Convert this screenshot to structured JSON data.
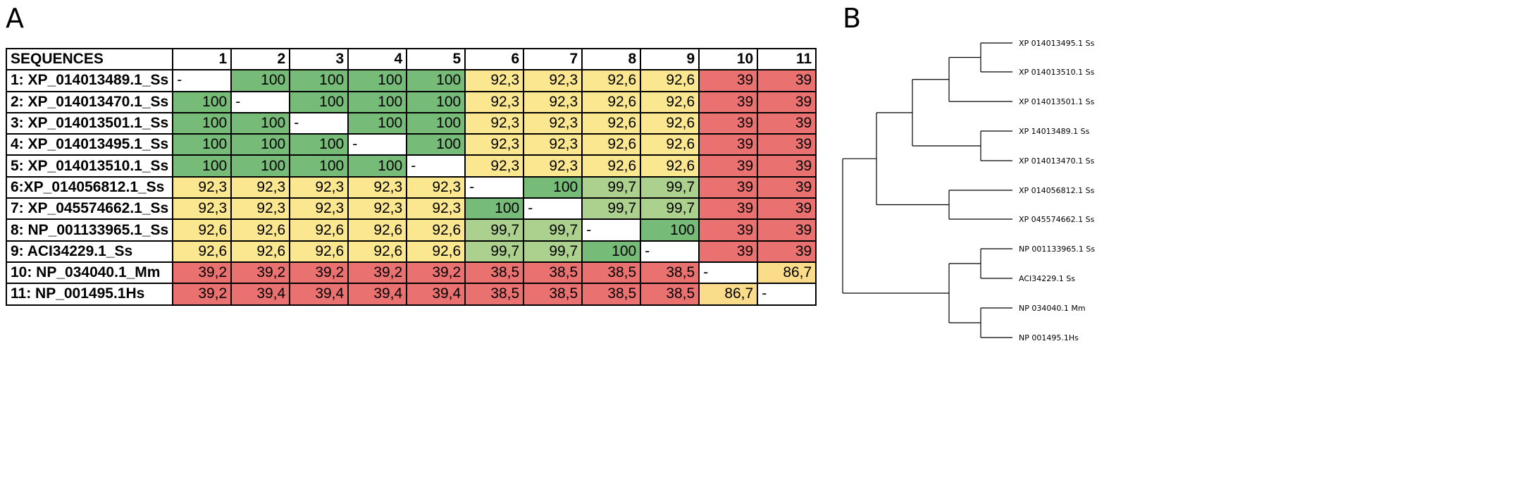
{
  "panels": {
    "a_label": "A",
    "b_label": "B"
  },
  "matrix": {
    "corner": "SEQUENCES",
    "columns": [
      "1",
      "2",
      "3",
      "4",
      "5",
      "6",
      "7",
      "8",
      "9",
      "10",
      "11"
    ],
    "rows": [
      {
        "name": "1: XP_014013489.1_Ss",
        "cells": [
          "-",
          "100",
          "100",
          "100",
          "100",
          "92,3",
          "92,3",
          "92,6",
          "92,6",
          "39",
          "39"
        ],
        "colors": [
          "w",
          "g",
          "g",
          "g",
          "g",
          "y",
          "y",
          "y",
          "y",
          "r",
          "r"
        ]
      },
      {
        "name": "2: XP_014013470.1_Ss",
        "cells": [
          "100",
          "-",
          "100",
          "100",
          "100",
          "92,3",
          "92,3",
          "92,6",
          "92,6",
          "39",
          "39"
        ],
        "colors": [
          "g",
          "w",
          "g",
          "g",
          "g",
          "y",
          "y",
          "y",
          "y",
          "r",
          "r"
        ]
      },
      {
        "name": "3: XP_014013501.1_Ss",
        "cells": [
          "100",
          "100",
          "-",
          "100",
          "100",
          "92,3",
          "92,3",
          "92,6",
          "92,6",
          "39",
          "39"
        ],
        "colors": [
          "g",
          "g",
          "w",
          "g",
          "g",
          "y",
          "y",
          "y",
          "y",
          "r",
          "r"
        ]
      },
      {
        "name": "4: XP_014013495.1_Ss",
        "cells": [
          "100",
          "100",
          "100",
          "-",
          "100",
          "92,3",
          "92,3",
          "92,6",
          "92,6",
          "39",
          "39"
        ],
        "colors": [
          "g",
          "g",
          "g",
          "w",
          "g",
          "y",
          "y",
          "y",
          "y",
          "r",
          "r"
        ]
      },
      {
        "name": "5: XP_014013510.1_Ss",
        "cells": [
          "100",
          "100",
          "100",
          "100",
          "-",
          "92,3",
          "92,3",
          "92,6",
          "92,6",
          "39",
          "39"
        ],
        "colors": [
          "g",
          "g",
          "g",
          "g",
          "w",
          "y",
          "y",
          "y",
          "y",
          "r",
          "r"
        ]
      },
      {
        "name": "6:XP_014056812.1_Ss",
        "cells": [
          "92,3",
          "92,3",
          "92,3",
          "92,3",
          "92,3",
          "-",
          "100",
          "99,7",
          "99,7",
          "39",
          "39"
        ],
        "colors": [
          "y",
          "y",
          "y",
          "y",
          "y",
          "w",
          "g",
          "lg",
          "lg",
          "r",
          "r"
        ]
      },
      {
        "name": "7: XP_045574662.1_Ss",
        "cells": [
          "92,3",
          "92,3",
          "92,3",
          "92,3",
          "92,3",
          "100",
          "-",
          "99,7",
          "99,7",
          "39",
          "39"
        ],
        "colors": [
          "y",
          "y",
          "y",
          "y",
          "y",
          "g",
          "w",
          "lg",
          "lg",
          "r",
          "r"
        ]
      },
      {
        "name": "8: NP_001133965.1_Ss",
        "cells": [
          "92,6",
          "92,6",
          "92,6",
          "92,6",
          "92,6",
          "99,7",
          "99,7",
          "-",
          "100",
          "39",
          "39"
        ],
        "colors": [
          "y",
          "y",
          "y",
          "y",
          "y",
          "lg",
          "lg",
          "w",
          "g",
          "r",
          "r"
        ]
      },
      {
        "name": "9: ACI34229.1_Ss",
        "cells": [
          "92,6",
          "92,6",
          "92,6",
          "92,6",
          "92,6",
          "99,7",
          "99,7",
          "100",
          "-",
          "39",
          "39"
        ],
        "colors": [
          "y",
          "y",
          "y",
          "y",
          "y",
          "lg",
          "lg",
          "g",
          "w",
          "r",
          "r"
        ]
      },
      {
        "name": "10: NP_034040.1_Mm",
        "cells": [
          "39,2",
          "39,2",
          "39,2",
          "39,2",
          "39,2",
          "38,5",
          "38,5",
          "38,5",
          "38,5",
          "-",
          "86,7"
        ],
        "colors": [
          "r",
          "r",
          "r",
          "r",
          "r",
          "r",
          "r",
          "r",
          "r",
          "w",
          "o"
        ]
      },
      {
        "name": "11: NP_001495.1Hs",
        "cells": [
          "39,2",
          "39,4",
          "39,4",
          "39,4",
          "39,4",
          "38,5",
          "38,5",
          "38,5",
          "38,5",
          "86,7",
          "-"
        ],
        "colors": [
          "r",
          "r",
          "r",
          "r",
          "r",
          "r",
          "r",
          "r",
          "r",
          "o",
          "w"
        ]
      }
    ]
  },
  "tree": {
    "leaves": [
      "XP 014013495.1 Ss",
      "XP 014013510.1 Ss",
      "XP 014013501.1 Ss",
      "XP 14013489.1 Ss",
      "XP 014013470.1 Ss",
      "XP 014056812.1 Ss",
      "XP 045574662.1 Ss",
      "NP 001133965.1 Ss",
      "ACI34229.1 Ss",
      "NP 034040.1 Mm",
      "NP 001495.1Hs"
    ]
  }
}
